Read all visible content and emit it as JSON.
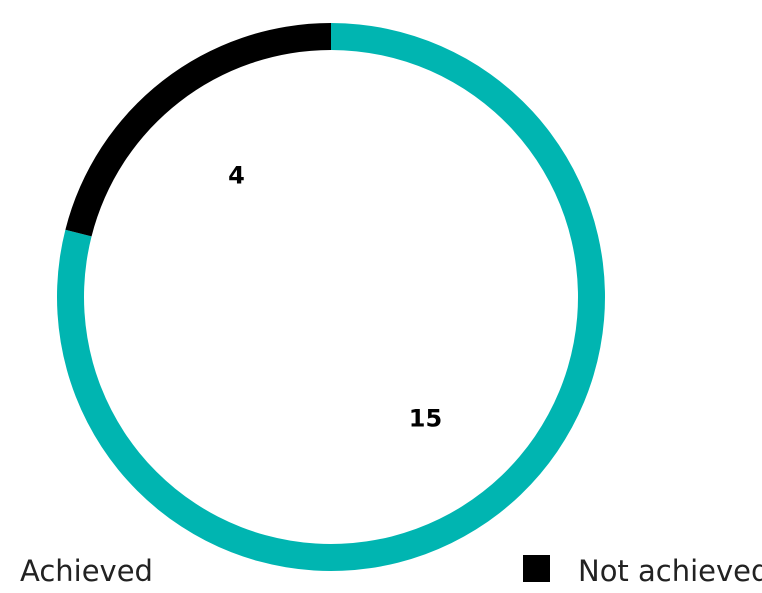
{
  "chart_data": {
    "type": "pie",
    "variant": "donut",
    "categories": [
      "Achieved",
      "Not achieved"
    ],
    "values": [
      15,
      4
    ],
    "colors": [
      "#00b5b1",
      "#000000"
    ],
    "data_labels": [
      "15",
      "4"
    ],
    "legend": {
      "placement": "bottom",
      "entries": [
        {
          "label": "Achieved",
          "color": "#00b5b1"
        },
        {
          "label": "Not achieved",
          "color": "#000000"
        }
      ]
    },
    "start_angle": "top",
    "direction": "clockwise"
  }
}
